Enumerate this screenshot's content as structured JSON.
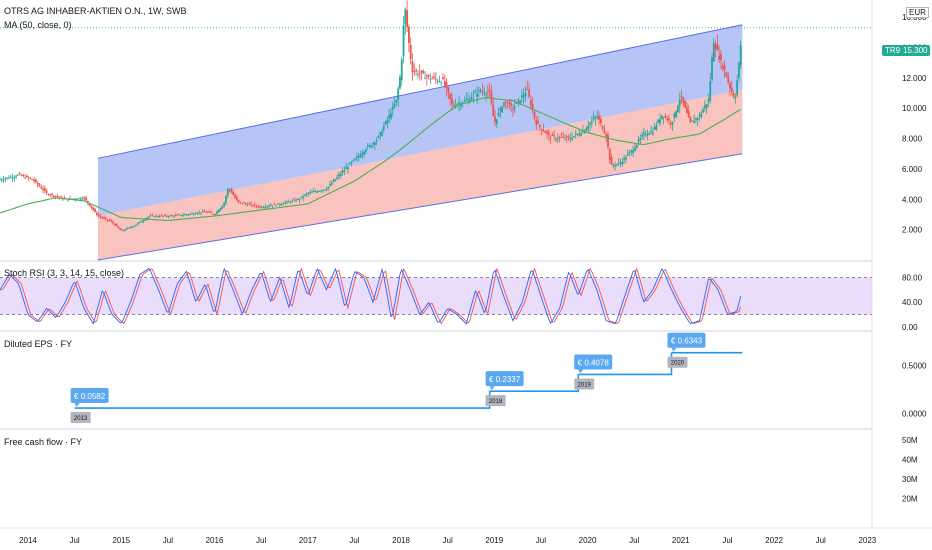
{
  "header": {
    "symbol_line": "OTRS AG INHABER-AKTIEN O.N., 1W, SWB",
    "ma_label": "MA (50, close, 0)",
    "currency": "EUR"
  },
  "price_badges": {
    "ticker": "TR9",
    "last": "15.300"
  },
  "panels": {
    "stoch": "Stoch RSI (3, 3, 14, 15, close)",
    "eps": "Diluted EPS · FY",
    "fcf": "Free cash flow · FY"
  },
  "colors": {
    "up": "#26a69a",
    "down": "#ef5350",
    "ma": "#4caf50",
    "channel_upper": "#aabbf5",
    "channel_lower": "#f8b8b4",
    "channel_line": "#5a6ee8",
    "stoch_k": "#2962ff",
    "stoch_d": "#ef5350",
    "stoch_band": "#e1cffa",
    "eps_line": "#2196f3",
    "badge_blue": "#5aa9f0",
    "badge_gray": "#b2b5be",
    "last_price": "#22ab94"
  },
  "chart_data": [
    {
      "type": "candlestick",
      "title": "OTRS AG INHABER-AKTIEN O.N., 1W, SWB",
      "y_ticks": [
        "2.000",
        "4.000",
        "6.000",
        "8.000",
        "10.000",
        "12.000",
        "14.000",
        "16.000"
      ],
      "y_tick_values": [
        2,
        4,
        6,
        8,
        10,
        12,
        14,
        16
      ],
      "ylim": [
        0,
        17
      ],
      "x_ticks": [
        "2014",
        "Jul",
        "2015",
        "Jul",
        "2016",
        "Jul",
        "2017",
        "Jul",
        "2018",
        "Jul",
        "2019",
        "Jul",
        "2020",
        "Jul",
        "2021",
        "Jul",
        "2022",
        "Jul",
        "2023"
      ],
      "x_tick_dates": [
        2014.0,
        2014.5,
        2015.0,
        2015.5,
        2016.0,
        2016.5,
        2017.0,
        2017.5,
        2018.0,
        2018.5,
        2019.0,
        2019.5,
        2020.0,
        2020.5,
        2021.0,
        2021.5,
        2022.0,
        2022.5,
        2023.0
      ],
      "xlim": [
        2013.7,
        2023.05
      ],
      "series_keypoints": [
        [
          2013.7,
          5.3
        ],
        [
          2013.9,
          5.6
        ],
        [
          2014.05,
          5.3
        ],
        [
          2014.2,
          4.4
        ],
        [
          2014.4,
          4.0
        ],
        [
          2014.6,
          4.1
        ],
        [
          2014.75,
          2.9
        ],
        [
          2014.9,
          2.5
        ],
        [
          2015.0,
          1.9
        ],
        [
          2015.15,
          2.3
        ],
        [
          2015.3,
          2.9
        ],
        [
          2015.5,
          2.9
        ],
        [
          2015.7,
          3.0
        ],
        [
          2015.9,
          3.2
        ],
        [
          2016.0,
          3.0
        ],
        [
          2016.1,
          3.7
        ],
        [
          2016.15,
          4.8
        ],
        [
          2016.25,
          3.8
        ],
        [
          2016.5,
          3.5
        ],
        [
          2016.7,
          3.7
        ],
        [
          2016.9,
          4.0
        ],
        [
          2017.0,
          4.4
        ],
        [
          2017.2,
          4.7
        ],
        [
          2017.4,
          6.0
        ],
        [
          2017.6,
          7.2
        ],
        [
          2017.75,
          8.0
        ],
        [
          2017.85,
          9.2
        ],
        [
          2017.95,
          10.5
        ],
        [
          2018.0,
          12.5
        ],
        [
          2018.04,
          16.8
        ],
        [
          2018.08,
          14.5
        ],
        [
          2018.12,
          12.5
        ],
        [
          2018.3,
          12.0
        ],
        [
          2018.45,
          11.8
        ],
        [
          2018.55,
          10.2
        ],
        [
          2018.7,
          10.5
        ],
        [
          2018.85,
          11.2
        ],
        [
          2018.95,
          11.0
        ],
        [
          2019.0,
          9.0
        ],
        [
          2019.1,
          10.4
        ],
        [
          2019.2,
          10.0
        ],
        [
          2019.35,
          11.2
        ],
        [
          2019.45,
          9.0
        ],
        [
          2019.6,
          8.1
        ],
        [
          2019.8,
          8.0
        ],
        [
          2019.95,
          8.5
        ],
        [
          2020.1,
          9.5
        ],
        [
          2020.2,
          8.2
        ],
        [
          2020.25,
          6.2
        ],
        [
          2020.35,
          6.4
        ],
        [
          2020.5,
          7.4
        ],
        [
          2020.6,
          8.3
        ],
        [
          2020.7,
          8.5
        ],
        [
          2020.8,
          9.6
        ],
        [
          2020.9,
          9.0
        ],
        [
          2021.0,
          10.8
        ],
        [
          2021.1,
          9.0
        ],
        [
          2021.2,
          9.5
        ],
        [
          2021.3,
          10.6
        ],
        [
          2021.35,
          14.5
        ],
        [
          2021.42,
          13.2
        ],
        [
          2021.48,
          12.3
        ],
        [
          2021.52,
          11.5
        ],
        [
          2021.58,
          10.6
        ],
        [
          2021.62,
          12.7
        ],
        [
          2021.66,
          15.3
        ]
      ],
      "last_price": 15.3
    },
    {
      "type": "line",
      "name": "MA (50, close, 0)",
      "series_keypoints": [
        [
          2013.7,
          3.1
        ],
        [
          2014.0,
          3.7
        ],
        [
          2014.3,
          4.1
        ],
        [
          2014.6,
          3.9
        ],
        [
          2015.0,
          2.8
        ],
        [
          2015.5,
          2.6
        ],
        [
          2016.0,
          2.9
        ],
        [
          2016.5,
          3.3
        ],
        [
          2017.0,
          3.7
        ],
        [
          2017.5,
          5.2
        ],
        [
          2017.8,
          6.4
        ],
        [
          2018.0,
          7.3
        ],
        [
          2018.3,
          8.8
        ],
        [
          2018.6,
          10.2
        ],
        [
          2018.9,
          10.7
        ],
        [
          2019.2,
          10.5
        ],
        [
          2019.5,
          9.7
        ],
        [
          2019.8,
          8.9
        ],
        [
          2020.0,
          8.4
        ],
        [
          2020.3,
          7.9
        ],
        [
          2020.6,
          7.6
        ],
        [
          2020.9,
          8.0
        ],
        [
          2021.2,
          8.3
        ],
        [
          2021.45,
          9.2
        ],
        [
          2021.66,
          10.0
        ]
      ]
    },
    {
      "type": "area",
      "name": "regression channel",
      "x_range": [
        2014.75,
        2021.66
      ],
      "upper": [
        6.7,
        15.5
      ],
      "middle": [
        2.9,
        11.2
      ],
      "lower": [
        0.0,
        7.0
      ]
    },
    {
      "type": "line",
      "name": "Stoch RSI (3, 3, 14, 15, close)",
      "y_ticks": [
        "80.00",
        "40.00",
        "0.00"
      ],
      "y_tick_values": [
        80,
        40,
        0
      ],
      "ylim": [
        -5,
        105
      ],
      "bands": [
        80,
        20
      ],
      "series_keypoints": [
        [
          2013.7,
          60
        ],
        [
          2013.8,
          85
        ],
        [
          2013.9,
          70
        ],
        [
          2014.0,
          20
        ],
        [
          2014.1,
          8
        ],
        [
          2014.2,
          30
        ],
        [
          2014.3,
          15
        ],
        [
          2014.4,
          40
        ],
        [
          2014.5,
          75
        ],
        [
          2014.6,
          30
        ],
        [
          2014.7,
          5
        ],
        [
          2014.8,
          60
        ],
        [
          2014.9,
          20
        ],
        [
          2015.0,
          5
        ],
        [
          2015.1,
          40
        ],
        [
          2015.2,
          85
        ],
        [
          2015.3,
          95
        ],
        [
          2015.4,
          60
        ],
        [
          2015.5,
          20
        ],
        [
          2015.6,
          70
        ],
        [
          2015.7,
          90
        ],
        [
          2015.8,
          40
        ],
        [
          2015.9,
          70
        ],
        [
          2016.0,
          20
        ],
        [
          2016.1,
          95
        ],
        [
          2016.2,
          60
        ],
        [
          2016.3,
          20
        ],
        [
          2016.4,
          60
        ],
        [
          2016.5,
          90
        ],
        [
          2016.6,
          40
        ],
        [
          2016.7,
          80
        ],
        [
          2016.8,
          30
        ],
        [
          2016.9,
          95
        ],
        [
          2017.0,
          50
        ],
        [
          2017.1,
          95
        ],
        [
          2017.2,
          60
        ],
        [
          2017.3,
          95
        ],
        [
          2017.4,
          30
        ],
        [
          2017.5,
          90
        ],
        [
          2017.6,
          80
        ],
        [
          2017.7,
          40
        ],
        [
          2017.8,
          95
        ],
        [
          2017.9,
          10
        ],
        [
          2018.0,
          95
        ],
        [
          2018.1,
          60
        ],
        [
          2018.2,
          20
        ],
        [
          2018.3,
          40
        ],
        [
          2018.4,
          5
        ],
        [
          2018.5,
          30
        ],
        [
          2018.6,
          20
        ],
        [
          2018.7,
          5
        ],
        [
          2018.8,
          60
        ],
        [
          2018.9,
          20
        ],
        [
          2019.0,
          95
        ],
        [
          2019.1,
          50
        ],
        [
          2019.2,
          10
        ],
        [
          2019.3,
          40
        ],
        [
          2019.4,
          95
        ],
        [
          2019.5,
          50
        ],
        [
          2019.6,
          5
        ],
        [
          2019.7,
          30
        ],
        [
          2019.8,
          90
        ],
        [
          2019.9,
          50
        ],
        [
          2020.0,
          95
        ],
        [
          2020.1,
          60
        ],
        [
          2020.2,
          10
        ],
        [
          2020.3,
          5
        ],
        [
          2020.4,
          50
        ],
        [
          2020.5,
          95
        ],
        [
          2020.6,
          40
        ],
        [
          2020.7,
          60
        ],
        [
          2020.8,
          95
        ],
        [
          2020.9,
          60
        ],
        [
          2021.0,
          30
        ],
        [
          2021.1,
          5
        ],
        [
          2021.2,
          10
        ],
        [
          2021.3,
          80
        ],
        [
          2021.4,
          60
        ],
        [
          2021.5,
          20
        ],
        [
          2021.6,
          25
        ],
        [
          2021.66,
          60
        ]
      ]
    },
    {
      "type": "line",
      "name": "Diluted EPS · FY",
      "y_ticks": [
        "0.5000",
        "0.0000"
      ],
      "y_tick_values": [
        0.5,
        0
      ],
      "ylim": [
        -0.15,
        0.85
      ],
      "categories": [
        "2013",
        "2018",
        "2019",
        "2020"
      ],
      "values": [
        0.0582,
        0.2337,
        0.4078,
        0.6343
      ],
      "value_labels": [
        "€ 0.0582",
        "€ 0.2337",
        "€ 0.4078",
        "€ 0.6343"
      ],
      "report_dates": [
        2014.5,
        2018.95,
        2019.9,
        2020.9
      ]
    },
    {
      "type": "bar",
      "name": "Free cash flow · FY",
      "y_ticks": [
        "50M",
        "40M",
        "30M",
        "20M"
      ],
      "y_tick_values": [
        50,
        40,
        30,
        20
      ],
      "ylim": [
        5,
        55
      ],
      "values": []
    }
  ]
}
